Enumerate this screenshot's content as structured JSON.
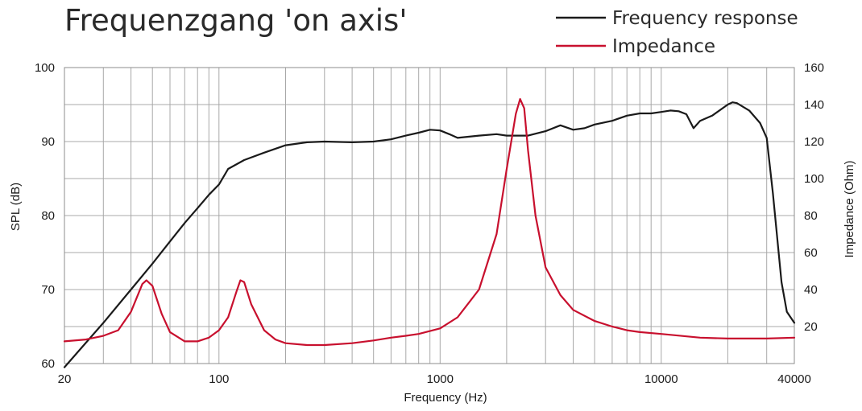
{
  "chart_data": {
    "type": "line",
    "title": "Frequenzgang 'on axis'",
    "xlabel": "Frequency (Hz)",
    "ylabel": "SPL (dB)",
    "y2label": "Impedance (Ohm)",
    "x_scale": "log",
    "xlim": [
      20,
      40000
    ],
    "ylim": [
      60,
      100
    ],
    "y2lim": [
      0,
      160
    ],
    "grid": true,
    "legend_position": "top-right",
    "x_ticks": [
      "20",
      "100",
      "1000",
      "10000",
      "40000"
    ],
    "x_tick_values": [
      20,
      100,
      1000,
      10000,
      40000
    ],
    "y_ticks": [
      "60",
      "70",
      "80",
      "90",
      "100"
    ],
    "y_tick_values": [
      60,
      70,
      80,
      90,
      100
    ],
    "y2_ticks": [
      "20",
      "40",
      "60",
      "80",
      "100",
      "120",
      "140",
      "160"
    ],
    "y2_tick_values": [
      20,
      40,
      60,
      80,
      100,
      120,
      140,
      160
    ],
    "series": [
      {
        "name": "Frequency response",
        "axis": "left",
        "color": "#1a1a1a",
        "x": [
          20,
          30,
          40,
          50,
          60,
          70,
          80,
          90,
          100,
          110,
          130,
          160,
          200,
          250,
          300,
          400,
          500,
          600,
          700,
          800,
          900,
          1000,
          1100,
          1200,
          1500,
          1800,
          2000,
          2500,
          3000,
          3500,
          4000,
          4500,
          5000,
          6000,
          7000,
          8000,
          9000,
          10000,
          11000,
          12000,
          13000,
          14000,
          15000,
          17000,
          20000,
          21000,
          22000,
          25000,
          28000,
          30000,
          32000,
          35000,
          37000,
          40000
        ],
        "y": [
          59.5,
          65.5,
          70,
          73.5,
          76.5,
          79,
          81,
          82.8,
          84.2,
          86.3,
          87.5,
          88.5,
          89.5,
          89.9,
          90,
          89.9,
          90,
          90.3,
          90.8,
          91.2,
          91.6,
          91.5,
          91,
          90.5,
          90.8,
          91,
          90.8,
          90.8,
          91.4,
          92.2,
          91.6,
          91.8,
          92.3,
          92.8,
          93.5,
          93.8,
          93.8,
          94,
          94.2,
          94.1,
          93.7,
          91.8,
          92.8,
          93.5,
          95,
          95.3,
          95.2,
          94.2,
          92.5,
          90.5,
          83,
          71,
          67,
          65.5
        ]
      },
      {
        "name": "Impedance",
        "axis": "right",
        "color": "#c8102e",
        "x": [
          20,
          25,
          30,
          35,
          40,
          45,
          47,
          50,
          55,
          60,
          70,
          80,
          90,
          100,
          110,
          120,
          125,
          130,
          140,
          160,
          180,
          200,
          250,
          300,
          400,
          500,
          600,
          700,
          800,
          1000,
          1200,
          1500,
          1800,
          2000,
          2200,
          2300,
          2400,
          2500,
          2700,
          3000,
          3500,
          4000,
          5000,
          6000,
          7000,
          8000,
          10000,
          15000,
          20000,
          30000,
          40000
        ],
        "y": [
          12,
          13,
          15,
          18,
          28,
          43,
          45,
          42,
          27,
          17,
          12,
          12,
          14,
          18,
          25,
          39,
          45,
          44,
          32,
          18,
          13,
          11,
          10,
          10,
          11,
          12.5,
          14,
          15,
          16,
          19,
          25,
          40,
          70,
          105,
          135,
          143,
          138,
          115,
          80,
          52,
          37,
          29,
          23,
          20,
          18,
          17,
          16,
          14,
          13.5,
          13.5,
          14
        ]
      }
    ]
  }
}
